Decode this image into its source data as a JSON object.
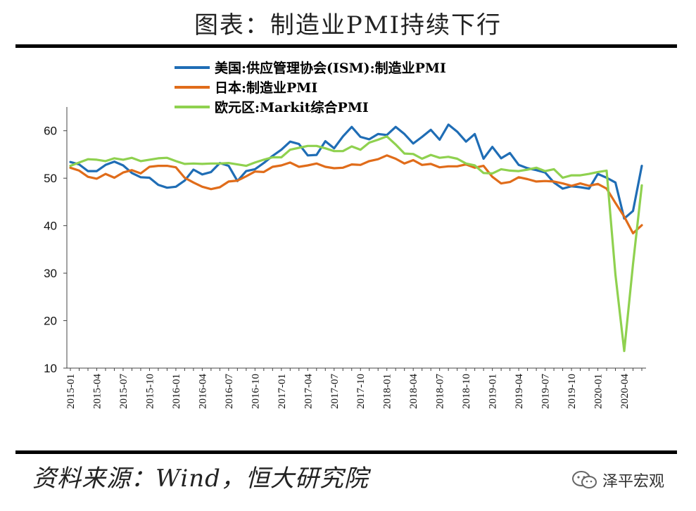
{
  "title": "图表：制造业PMI持续下行",
  "source": "资料来源：Wind，恒大研究院",
  "brand": "泽平宏观",
  "chart_data": {
    "type": "line",
    "title": "",
    "xlabel": "",
    "ylabel": "",
    "ylim": [
      10,
      65
    ],
    "yticks": [
      10,
      20,
      30,
      40,
      50,
      60
    ],
    "grid": false,
    "legend_position": "top",
    "x_tick_labels": [
      "2015-01",
      "2015-04",
      "2015-07",
      "2015-10",
      "2016-01",
      "2016-04",
      "2016-07",
      "2016-10",
      "2017-01",
      "2017-04",
      "2017-07",
      "2017-10",
      "2018-01",
      "2018-04",
      "2018-07",
      "2018-10",
      "2019-01",
      "2019-04",
      "2019-07",
      "2019-10",
      "2020-01",
      "2020-04"
    ],
    "x": [
      "2015-01",
      "2015-02",
      "2015-03",
      "2015-04",
      "2015-05",
      "2015-06",
      "2015-07",
      "2015-08",
      "2015-09",
      "2015-10",
      "2015-11",
      "2015-12",
      "2016-01",
      "2016-02",
      "2016-03",
      "2016-04",
      "2016-05",
      "2016-06",
      "2016-07",
      "2016-08",
      "2016-09",
      "2016-10",
      "2016-11",
      "2016-12",
      "2017-01",
      "2017-02",
      "2017-03",
      "2017-04",
      "2017-05",
      "2017-06",
      "2017-07",
      "2017-08",
      "2017-09",
      "2017-10",
      "2017-11",
      "2017-12",
      "2018-01",
      "2018-02",
      "2018-03",
      "2018-04",
      "2018-05",
      "2018-06",
      "2018-07",
      "2018-08",
      "2018-09",
      "2018-10",
      "2018-11",
      "2018-12",
      "2019-01",
      "2019-02",
      "2019-03",
      "2019-04",
      "2019-05",
      "2019-06",
      "2019-07",
      "2019-08",
      "2019-09",
      "2019-10",
      "2019-11",
      "2019-12",
      "2020-01",
      "2020-02",
      "2020-03",
      "2020-04",
      "2020-05",
      "2020-06"
    ],
    "series": [
      {
        "name": "美国:供应管理协会(ISM):制造业PMI",
        "color": "#1f6db5",
        "values": [
          53.4,
          52.9,
          51.5,
          51.5,
          52.8,
          53.5,
          52.7,
          51.1,
          50.2,
          50.1,
          48.6,
          48.0,
          48.2,
          49.5,
          51.8,
          50.8,
          51.3,
          53.2,
          52.6,
          49.4,
          51.5,
          51.9,
          53.2,
          54.7,
          56.0,
          57.7,
          57.2,
          54.8,
          54.9,
          57.8,
          56.3,
          58.8,
          60.8,
          58.7,
          58.2,
          59.3,
          59.1,
          60.8,
          59.3,
          57.3,
          58.7,
          60.2,
          58.1,
          61.3,
          59.8,
          57.7,
          59.3,
          54.1,
          56.6,
          54.2,
          55.3,
          52.8,
          52.1,
          51.7,
          51.2,
          49.1,
          47.8,
          48.3,
          48.1,
          47.8,
          50.9,
          50.1,
          49.1,
          41.5,
          43.1,
          52.6
        ]
      },
      {
        "name": "日本:制造业PMI",
        "color": "#e06c1a",
        "values": [
          52.2,
          51.6,
          50.3,
          49.9,
          50.9,
          50.1,
          51.2,
          51.7,
          51.0,
          52.4,
          52.6,
          52.6,
          52.3,
          50.1,
          49.1,
          48.2,
          47.7,
          48.1,
          49.3,
          49.5,
          50.4,
          51.4,
          51.3,
          52.4,
          52.7,
          53.3,
          52.4,
          52.7,
          53.1,
          52.4,
          52.1,
          52.2,
          52.9,
          52.8,
          53.6,
          54.0,
          54.8,
          54.1,
          53.1,
          53.8,
          52.8,
          53.0,
          52.3,
          52.5,
          52.5,
          52.9,
          52.2,
          52.6,
          50.3,
          48.9,
          49.2,
          50.2,
          49.8,
          49.3,
          49.4,
          49.3,
          48.9,
          48.4,
          48.9,
          48.4,
          48.8,
          47.8,
          44.8,
          41.9,
          38.4,
          40.1
        ]
      },
      {
        "name": "欧元区:Markit综合PMI",
        "color": "#8fd14f",
        "values": [
          52.6,
          53.3,
          54.0,
          53.9,
          53.6,
          54.2,
          53.9,
          54.3,
          53.6,
          53.9,
          54.2,
          54.3,
          53.6,
          53.0,
          53.1,
          53.0,
          53.1,
          53.1,
          53.2,
          52.9,
          52.6,
          53.3,
          53.9,
          54.4,
          54.4,
          56.0,
          56.4,
          56.8,
          56.8,
          56.3,
          55.7,
          55.7,
          56.7,
          56.0,
          57.5,
          58.1,
          58.8,
          57.1,
          55.2,
          55.1,
          54.1,
          54.9,
          54.3,
          54.5,
          54.1,
          53.1,
          52.7,
          51.1,
          51.0,
          51.9,
          51.6,
          51.5,
          51.8,
          52.2,
          51.5,
          51.9,
          50.1,
          50.6,
          50.6,
          50.9,
          51.3,
          51.6,
          29.7,
          13.6,
          31.9,
          48.5
        ]
      }
    ]
  }
}
